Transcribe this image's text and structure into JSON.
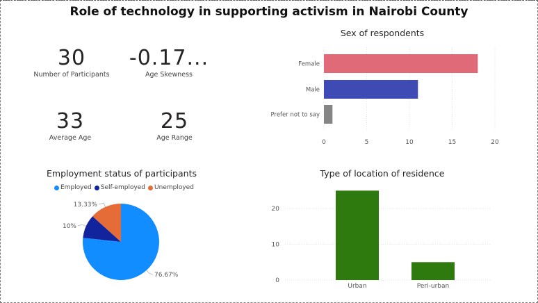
{
  "title": "Role of technology in supporting activism in Nairobi County",
  "kpis": [
    {
      "value": "30",
      "label": "Number of Participants"
    },
    {
      "value": "-0.17...",
      "label": "Age Skewness"
    },
    {
      "value": "33",
      "label": "Average Age"
    },
    {
      "value": "25",
      "label": "Age Range"
    }
  ],
  "colors": {
    "female": "#E06A78",
    "male": "#3F4BB5",
    "prefer_not": "#858585",
    "employed": "#118DFF",
    "self_employed": "#12239E",
    "unemployed": "#E66C37",
    "location": "#2E7A0E"
  },
  "chart_data": [
    {
      "type": "bar",
      "orientation": "horizontal",
      "title": "Sex of respondents",
      "categories": [
        "Female",
        "Male",
        "Prefer not to say"
      ],
      "values": [
        18,
        11,
        1
      ],
      "xlim": [
        0,
        20
      ],
      "xticks": [
        "0",
        "5",
        "10",
        "15",
        "20"
      ],
      "grid": true
    },
    {
      "type": "pie",
      "title": "Employment status of participants",
      "categories": [
        "Employed",
        "Self-employed",
        "Unemployed"
      ],
      "values": [
        76.67,
        10,
        13.33
      ],
      "data_labels": [
        "76.67%",
        "10%",
        "13.33%"
      ],
      "legend": "top"
    },
    {
      "type": "bar",
      "title": "Type of location of residence",
      "categories": [
        "Urban",
        "Peri-urban"
      ],
      "values": [
        25,
        5
      ],
      "ylim": [
        0,
        27
      ],
      "yticks": [
        "0",
        "10",
        "20"
      ],
      "grid": true
    }
  ]
}
